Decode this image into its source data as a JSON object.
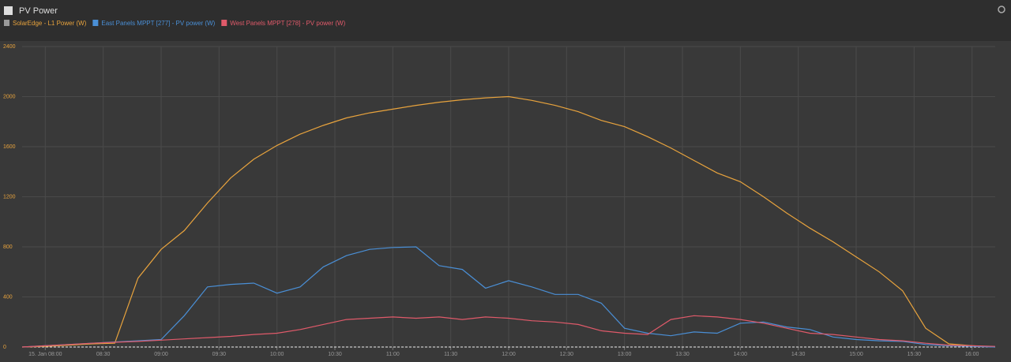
{
  "chart_data": {
    "type": "line",
    "title": "PV Power",
    "x": [
      7.8,
      8,
      8.2,
      8.4,
      8.6,
      8.8,
      9,
      9.2,
      9.4,
      9.6,
      9.8,
      10,
      10.2,
      10.4,
      10.6,
      10.8,
      11,
      11.2,
      11.4,
      11.6,
      11.8,
      12,
      12.2,
      12.4,
      12.6,
      12.8,
      13,
      13.2,
      13.4,
      13.6,
      13.8,
      14,
      14.2,
      14.4,
      14.6,
      14.8,
      15,
      15.2,
      15.4,
      15.6,
      15.8,
      16,
      16.2
    ],
    "series": [
      {
        "name": "SolarEdge - L1 Power (W)",
        "color": "#e8a33d",
        "values": [
          0,
          5,
          15,
          25,
          30,
          550,
          780,
          930,
          1150,
          1350,
          1500,
          1610,
          1700,
          1770,
          1830,
          1870,
          1900,
          1930,
          1955,
          1975,
          1990,
          2000,
          1970,
          1930,
          1880,
          1810,
          1760,
          1680,
          1590,
          1490,
          1390,
          1320,
          1200,
          1070,
          950,
          840,
          720,
          600,
          450,
          150,
          25,
          10,
          0
        ]
      },
      {
        "name": "East Panels MPPT [277] - PV power (W)",
        "color": "#4a8fd6",
        "values": [
          0,
          10,
          20,
          30,
          40,
          50,
          60,
          250,
          480,
          500,
          510,
          430,
          480,
          640,
          730,
          780,
          795,
          800,
          650,
          620,
          470,
          530,
          480,
          420,
          420,
          350,
          150,
          110,
          90,
          120,
          110,
          190,
          200,
          160,
          140,
          80,
          60,
          50,
          45,
          20,
          10,
          5,
          0
        ]
      },
      {
        "name": "West Panels MPPT [278] - PV power (W)",
        "color": "#e05a6a",
        "values": [
          0,
          10,
          20,
          30,
          38,
          45,
          55,
          65,
          75,
          85,
          100,
          110,
          140,
          180,
          220,
          230,
          240,
          230,
          240,
          220,
          240,
          230,
          210,
          200,
          180,
          130,
          110,
          100,
          220,
          250,
          240,
          220,
          190,
          150,
          110,
          100,
          80,
          60,
          50,
          30,
          15,
          10,
          5
        ]
      }
    ],
    "xlim": [
      7.8,
      16.2
    ],
    "xticks": [
      {
        "value": 8,
        "label": "15. Jan 08:00"
      },
      {
        "value": 8.5,
        "label": "08:30"
      },
      {
        "value": 9,
        "label": "09:00"
      },
      {
        "value": 9.5,
        "label": "09:30"
      },
      {
        "value": 10,
        "label": "10:00"
      },
      {
        "value": 10.5,
        "label": "10:30"
      },
      {
        "value": 11,
        "label": "11:00"
      },
      {
        "value": 11.5,
        "label": "11:30"
      },
      {
        "value": 12,
        "label": "12:00"
      },
      {
        "value": 12.5,
        "label": "12:30"
      },
      {
        "value": 13,
        "label": "13:00"
      },
      {
        "value": 13.5,
        "label": "13:30"
      },
      {
        "value": 14,
        "label": "14:00"
      },
      {
        "value": 14.5,
        "label": "14:30"
      },
      {
        "value": 15,
        "label": "15:00"
      },
      {
        "value": 15.5,
        "label": "15:30"
      },
      {
        "value": 16,
        "label": "16:00"
      }
    ],
    "ylim": [
      0,
      2400
    ],
    "yticks": [
      0,
      400,
      800,
      1200,
      1600,
      2000,
      2400
    ],
    "grid": true
  }
}
